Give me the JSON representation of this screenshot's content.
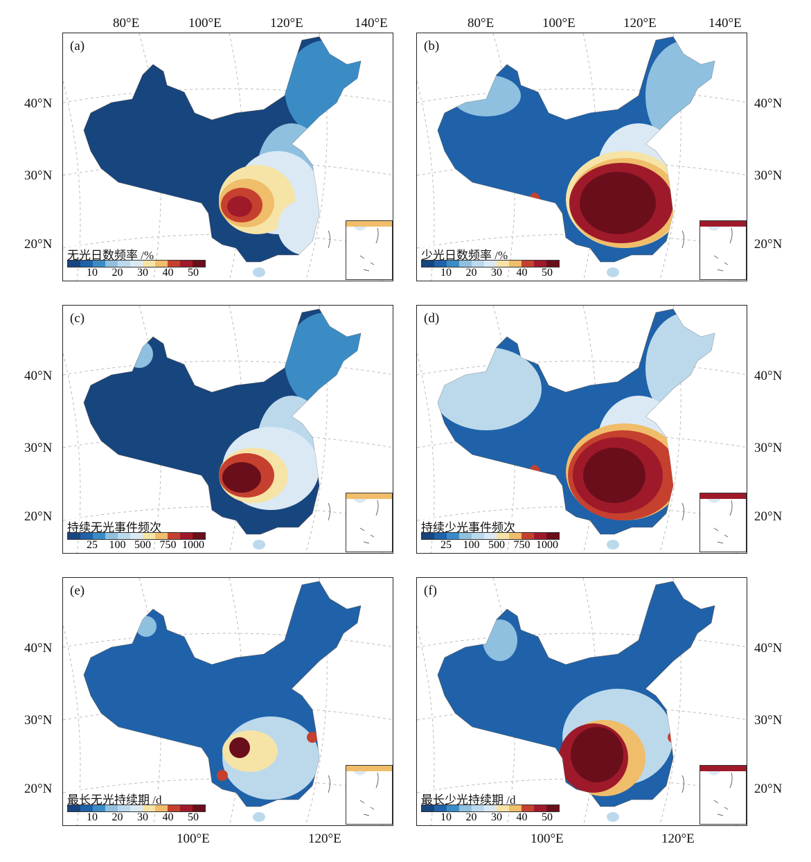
{
  "colors": [
    "#17457e",
    "#1f62aa",
    "#3b8cc4",
    "#8fc0df",
    "#bcd9ec",
    "#dbe9f4",
    "#f6e4a6",
    "#f0bd6a",
    "#c6402f",
    "#9e1a2a",
    "#6b0e1b"
  ],
  "top_lon_labels": [
    "80°E",
    "100°E",
    "120°E",
    "140°E"
  ],
  "bottom_lon_labels": [
    "100°E",
    "120°E"
  ],
  "lat_labels": [
    "40°N",
    "30°N",
    "20°N"
  ],
  "panels": [
    {
      "id": "(a)",
      "title": "无光日数频率 /%",
      "ticks": [
        "10",
        "20",
        "30",
        "40",
        "50"
      ]
    },
    {
      "id": "(b)",
      "title": "少光日数频率 /%",
      "ticks": [
        "10",
        "20",
        "30",
        "40",
        "50"
      ]
    },
    {
      "id": "(c)",
      "title": "持续无光事件频次",
      "ticks": [
        "25",
        "100",
        "500",
        "750",
        "1000"
      ]
    },
    {
      "id": "(d)",
      "title": "持续少光事件频次",
      "ticks": [
        "25",
        "100",
        "500",
        "750",
        "1000"
      ]
    },
    {
      "id": "(e)",
      "title": "最长无光持续期 /d",
      "ticks": [
        "10",
        "20",
        "30",
        "40",
        "50"
      ]
    },
    {
      "id": "(f)",
      "title": "最长少光持续期 /d",
      "ticks": [
        "10",
        "20",
        "30",
        "40",
        "50"
      ]
    }
  ]
}
